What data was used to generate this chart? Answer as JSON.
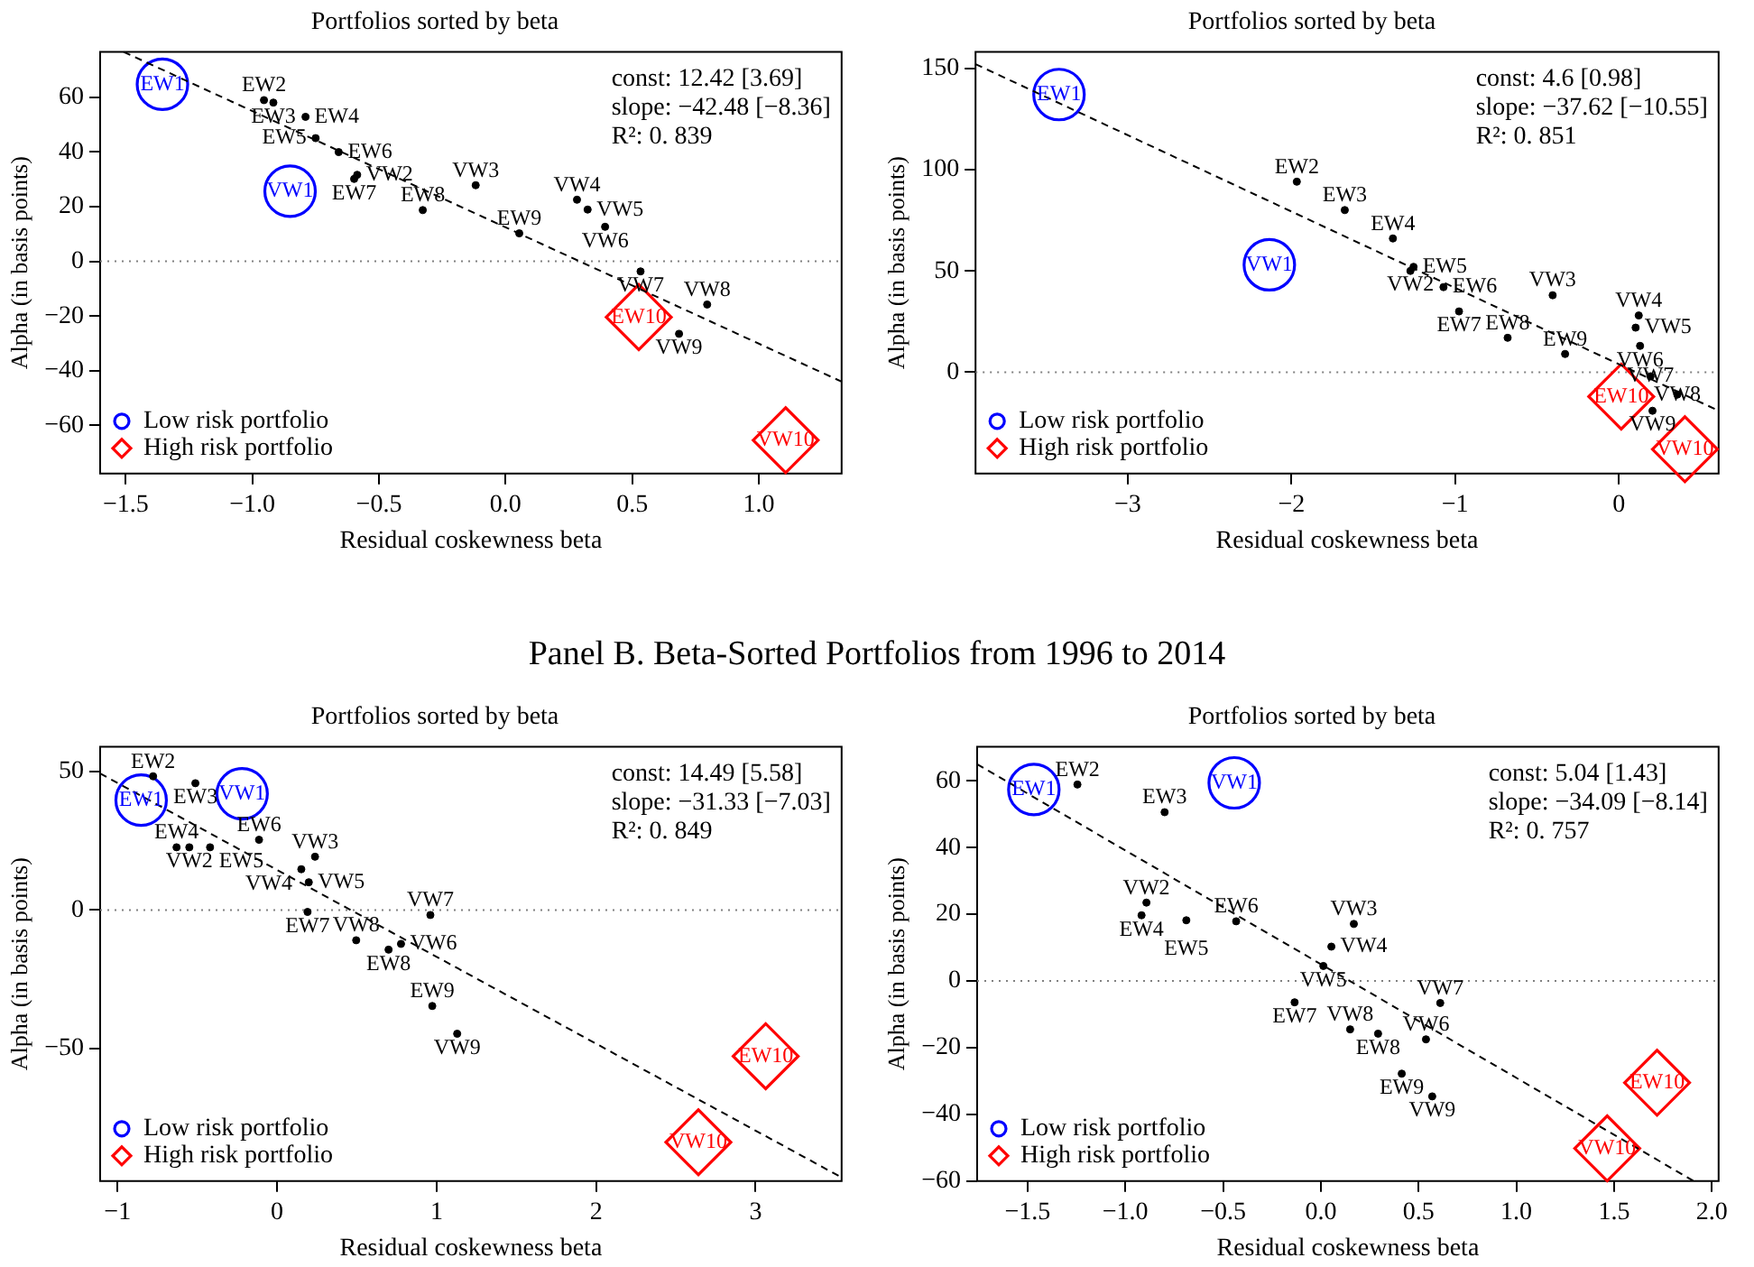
{
  "chart_data": [
    {
      "type": "scatter",
      "title": "Portfolios sorted by beta",
      "xlabel": "Residual coskewness beta",
      "ylabel": "Alpha (in basis points)",
      "xlim": [
        -1.601,
        1.327
      ],
      "ylim": [
        -77.6,
        76.5
      ],
      "xticks": [
        {
          "value": -1.5,
          "label": "−1.5"
        },
        {
          "value": -1,
          "label": "−1.0"
        },
        {
          "value": -0.5,
          "label": "−0.5"
        },
        {
          "value": 0,
          "label": "0.0"
        },
        {
          "value": 0.5,
          "label": "0.5"
        },
        {
          "value": 1,
          "label": "1.0"
        }
      ],
      "yticks": [
        {
          "value": -60,
          "label": "−60"
        },
        {
          "value": -40,
          "label": "−40"
        },
        {
          "value": -20,
          "label": "−20"
        },
        0,
        20,
        40,
        60
      ],
      "legend": "bottom left",
      "series": [
        {
          "name": "Low risk portfolio",
          "color": "#0000ff",
          "marker": "circle",
          "x": [
            -1.355,
            -0.851
          ],
          "values": [
            64.7,
            25.6
          ]
        },
        {
          "name": "High risk portfolio",
          "color": "#ff0000",
          "marker": "diamond",
          "x": [
            0.526,
            1.106
          ],
          "values": [
            -20.4,
            -65.4
          ]
        },
        {
          "color": "#000000",
          "marker": "circle",
          "x": [
            -0.954,
            -0.917,
            -0.79,
            -0.75,
            -0.659,
            -0.586,
            -0.598,
            -0.118,
            -0.327,
            0.054,
            0.282,
            0.324,
            0.393,
            0.533,
            0.796,
            0.685
          ],
          "values": [
            58.9,
            58.0,
            52.8,
            45.0,
            39.9,
            31.6,
            30.1,
            27.8,
            18.7,
            10.2,
            22.5,
            18.9,
            12.6,
            -3.7,
            -15.8,
            -26.5
          ]
        },
        {
          "type": "line",
          "color": "#000000",
          "marker": "none",
          "line_style": "dashed",
          "x": [
            -1.508,
            1.327
          ],
          "values": [
            76.5,
            -44.0
          ]
        }
      ],
      "ref_lines": [
        {
          "axis": "y",
          "value": 0,
          "color": "#808080",
          "line_style": "dotted"
        }
      ],
      "annotations": [
        "const: 12.42 [3.69]",
        "slope: −42.48 [−8.36]",
        "R²: 0. 839",
        {
          "text": "EW1",
          "x": -1.355,
          "y": 64.7
        },
        {
          "text": "VW1",
          "x": -0.851,
          "y": 25.6
        },
        {
          "text": "EW2",
          "x": -0.954,
          "y": 58.9
        },
        {
          "text": "EW3",
          "x": -0.917,
          "y": 58.0
        },
        {
          "text": "EW4",
          "x": -0.79,
          "y": 52.8
        },
        {
          "text": "EW5",
          "x": -0.75,
          "y": 45.0
        },
        {
          "text": "EW6",
          "x": -0.659,
          "y": 39.9
        },
        {
          "text": "VW2",
          "x": -0.586,
          "y": 31.6
        },
        {
          "text": "EW7",
          "x": -0.598,
          "y": 30.1
        },
        {
          "text": "VW3",
          "x": -0.118,
          "y": 27.8
        },
        {
          "text": "EW8",
          "x": -0.327,
          "y": 18.7
        },
        {
          "text": "EW9",
          "x": 0.054,
          "y": 10.2
        },
        {
          "text": "VW4",
          "x": 0.282,
          "y": 22.5
        },
        {
          "text": "VW5",
          "x": 0.324,
          "y": 18.9
        },
        {
          "text": "VW6",
          "x": 0.393,
          "y": 12.6
        },
        {
          "text": "VW7",
          "x": 0.533,
          "y": -3.7
        },
        {
          "text": "VW8",
          "x": 0.796,
          "y": -15.8
        },
        {
          "text": "VW9",
          "x": 0.685,
          "y": -26.5
        },
        {
          "text": "EW10",
          "x": 0.526,
          "y": -20.4
        },
        {
          "text": "VW10",
          "x": 1.106,
          "y": -65.4
        }
      ]
    },
    {
      "type": "scatter",
      "title": "Portfolios sorted by beta",
      "xlabel": "Residual coskewness beta",
      "ylabel": "Alpha (in basis points)",
      "xlim": [
        -3.93,
        0.61
      ],
      "ylim": [
        -50,
        158
      ],
      "xticks": [
        {
          "value": -3,
          "label": "−3"
        },
        {
          "value": -2,
          "label": "−2"
        },
        {
          "value": -1,
          "label": "−1"
        },
        0
      ],
      "yticks": [
        0,
        50,
        100,
        150
      ],
      "legend": "bottom left",
      "series": [
        {
          "name": "Low risk portfolio",
          "color": "#0000ff",
          "marker": "circle",
          "x": [
            -3.42,
            -2.135
          ],
          "values": [
            137,
            53
          ]
        },
        {
          "name": "High risk portfolio",
          "color": "#ff0000",
          "marker": "diamond",
          "x": [
            0.015,
            0.404
          ],
          "values": [
            -12,
            -38
          ]
        },
        {
          "color": "#000000",
          "marker": "circle",
          "x": [
            -1.967,
            -1.674,
            -1.38,
            -1.254,
            -1.273,
            -1.071,
            -0.976,
            -0.404,
            -0.679,
            -0.328,
            0.122,
            0.103,
            0.13,
            0.194,
            0.358,
            0.206
          ],
          "values": [
            94,
            80,
            66,
            52,
            50,
            42,
            30,
            38,
            17,
            9,
            28,
            22,
            13,
            -2,
            -11,
            -19
          ]
        },
        {
          "type": "line",
          "color": "#000000",
          "marker": "none",
          "line_style": "dashed",
          "x": [
            -3.93,
            0.61
          ],
          "values": [
            152,
            -19
          ]
        }
      ],
      "ref_lines": [
        {
          "axis": "y",
          "value": 0,
          "color": "#808080",
          "line_style": "dotted"
        }
      ],
      "annotations": [
        "const: 4.6 [0.98]",
        "slope: −37.62 [−10.55]",
        "R²: 0. 851",
        {
          "text": "EW1",
          "x": -3.42,
          "y": 137
        },
        {
          "text": "VW1",
          "x": -2.135,
          "y": 53
        },
        {
          "text": "EW2",
          "x": -1.967,
          "y": 94
        },
        {
          "text": "EW3",
          "x": -1.674,
          "y": 80
        },
        {
          "text": "EW4",
          "x": -1.38,
          "y": 66
        },
        {
          "text": "EW5",
          "x": -1.254,
          "y": 52
        },
        {
          "text": "VW2",
          "x": -1.273,
          "y": 50
        },
        {
          "text": "EW6",
          "x": -1.071,
          "y": 42
        },
        {
          "text": "EW7",
          "x": -0.976,
          "y": 30
        },
        {
          "text": "VW3",
          "x": -0.404,
          "y": 38
        },
        {
          "text": "EW8",
          "x": -0.679,
          "y": 17
        },
        {
          "text": "EW9",
          "x": -0.328,
          "y": 9
        },
        {
          "text": "VW4",
          "x": 0.122,
          "y": 28
        },
        {
          "text": "VW5",
          "x": 0.103,
          "y": 22
        },
        {
          "text": "VW6",
          "x": 0.13,
          "y": 13
        },
        {
          "text": "VW7",
          "x": 0.194,
          "y": -2
        },
        {
          "text": "VW8",
          "x": 0.358,
          "y": -11
        },
        {
          "text": "VW9",
          "x": 0.206,
          "y": -19
        },
        {
          "text": "EW10",
          "x": 0.015,
          "y": -12
        },
        {
          "text": "VW10",
          "x": 0.404,
          "y": -38
        }
      ]
    },
    {
      "type": "scatter",
      "title": "Portfolios sorted by beta",
      "subtitle": "Panel B. Beta-Sorted Portfolios from 1996 to 2014",
      "xlabel": "Residual coskewness beta",
      "ylabel": "Alpha (in basis points)",
      "xlim": [
        -1.109,
        3.539
      ],
      "ylim": [
        -97.7,
        58.8
      ],
      "xticks": [
        {
          "value": -1,
          "label": "−1"
        },
        0,
        1,
        2,
        3
      ],
      "yticks": [
        {
          "value": -50,
          "label": "−50"
        },
        0,
        50
      ],
      "legend": "bottom left",
      "series": [
        {
          "name": "Low risk portfolio",
          "color": "#0000ff",
          "marker": "circle",
          "x": [
            -0.852,
            -0.219
          ],
          "values": [
            39.6,
            41.9
          ]
        },
        {
          "name": "High risk portfolio",
          "color": "#ff0000",
          "marker": "diamond",
          "x": [
            3.063,
            2.641
          ],
          "values": [
            -52.7,
            -83.7
          ]
        },
        {
          "color": "#000000",
          "marker": "circle",
          "x": [
            -0.777,
            -0.512,
            -0.63,
            -0.55,
            -0.42,
            -0.113,
            0.238,
            0.152,
            0.199,
            0.191,
            0.961,
            0.496,
            0.777,
            0.699,
            0.973,
            1.129
          ],
          "values": [
            48.2,
            45.7,
            22.6,
            22.6,
            22.6,
            25.3,
            19.2,
            14.7,
            10.0,
            -0.7,
            -1.8,
            -10.9,
            -12.2,
            -14.3,
            -34.6,
            -44.6
          ]
        },
        {
          "type": "line",
          "color": "#000000",
          "marker": "none",
          "line_style": "dashed",
          "x": [
            -1.109,
            3.539
          ],
          "values": [
            49.2,
            -96.4
          ]
        }
      ],
      "ref_lines": [
        {
          "axis": "y",
          "value": 0,
          "color": "#808080",
          "line_style": "dotted"
        }
      ],
      "annotations": [
        "const: 14.49 [5.58]",
        "slope: −31.33 [−7.03]",
        "R²: 0. 849",
        {
          "text": "EW1",
          "x": -0.852,
          "y": 39.6
        },
        {
          "text": "VW1",
          "x": -0.219,
          "y": 41.9
        },
        {
          "text": "EW2",
          "x": -0.777,
          "y": 48.2
        },
        {
          "text": "EW3",
          "x": -0.512,
          "y": 45.7
        },
        {
          "text": "EW4",
          "x": -0.63,
          "y": 22.6
        },
        {
          "text": "VW2",
          "x": -0.55,
          "y": 22.6
        },
        {
          "text": "EW5",
          "x": -0.42,
          "y": 22.6
        },
        {
          "text": "EW6",
          "x": -0.113,
          "y": 25.3
        },
        {
          "text": "VW3",
          "x": 0.238,
          "y": 19.2
        },
        {
          "text": "VW4",
          "x": 0.152,
          "y": 14.7
        },
        {
          "text": "VW5",
          "x": 0.199,
          "y": 10.0
        },
        {
          "text": "EW7",
          "x": 0.191,
          "y": -0.7
        },
        {
          "text": "VW7",
          "x": 0.961,
          "y": -1.8
        },
        {
          "text": "VW8",
          "x": 0.496,
          "y": -10.9
        },
        {
          "text": "VW6",
          "x": 0.777,
          "y": -12.2
        },
        {
          "text": "EW8",
          "x": 0.699,
          "y": -14.3
        },
        {
          "text": "EW9",
          "x": 0.973,
          "y": -34.6
        },
        {
          "text": "VW9",
          "x": 1.129,
          "y": -44.6
        },
        {
          "text": "EW10",
          "x": 3.063,
          "y": -52.7
        },
        {
          "text": "VW10",
          "x": 2.641,
          "y": -83.7
        }
      ]
    },
    {
      "type": "scatter",
      "title": "Portfolios sorted by beta",
      "xlabel": "Residual coskewness beta",
      "ylabel": "Alpha (in basis points)",
      "xlim": [
        -1.758,
        2.035
      ],
      "ylim": [
        -60,
        70.2
      ],
      "xticks": [
        {
          "value": -1.5,
          "label": "−1.5"
        },
        {
          "value": -1,
          "label": "−1.0"
        },
        {
          "value": -0.5,
          "label": "−0.5"
        },
        {
          "value": 0,
          "label": "0.0"
        },
        {
          "value": 0.5,
          "label": "0.5"
        },
        {
          "value": 1,
          "label": "1.0"
        },
        {
          "value": 1.5,
          "label": "1.5"
        },
        {
          "value": 2,
          "label": "2.0"
        }
      ],
      "yticks": [
        {
          "value": -60,
          "label": "−60"
        },
        {
          "value": -40,
          "label": "−40"
        },
        {
          "value": -20,
          "label": "−20"
        },
        0,
        20,
        40,
        60
      ],
      "legend": "bottom left",
      "series": [
        {
          "name": "Low risk portfolio",
          "color": "#0000ff",
          "marker": "circle",
          "x": [
            -1.468,
            -0.443
          ],
          "values": [
            57.4,
            59.4
          ]
        },
        {
          "name": "High risk portfolio",
          "color": "#ff0000",
          "marker": "diamond",
          "x": [
            1.72,
            1.465
          ],
          "values": [
            -30.5,
            -50.2
          ]
        },
        {
          "color": "#000000",
          "marker": "circle",
          "x": [
            -1.245,
            -0.799,
            -0.892,
            -0.917,
            -0.688,
            -0.433,
            0.169,
            0.054,
            0.013,
            -0.134,
            0.611,
            0.15,
            0.293,
            0.538,
            0.414,
            0.57
          ],
          "values": [
            58.9,
            50.6,
            23.5,
            19.7,
            18.2,
            17.9,
            17.1,
            10.3,
            4.5,
            -6.4,
            -6.6,
            -14.5,
            -15.8,
            -17.5,
            -27.8,
            -34.6
          ]
        },
        {
          "type": "line",
          "color": "#000000",
          "marker": "none",
          "line_style": "dashed",
          "x": [
            -1.758,
            1.908
          ],
          "values": [
            65.0,
            -60
          ]
        }
      ],
      "ref_lines": [
        {
          "axis": "y",
          "value": 0,
          "color": "#808080",
          "line_style": "dotted"
        }
      ],
      "annotations": [
        "const: 5.04 [1.43]",
        "slope: −34.09 [−8.14]",
        "R²: 0. 757",
        {
          "text": "EW1",
          "x": -1.468,
          "y": 57.4
        },
        {
          "text": "VW1",
          "x": -0.443,
          "y": 59.4
        },
        {
          "text": "EW2",
          "x": -1.245,
          "y": 58.9
        },
        {
          "text": "EW3",
          "x": -0.799,
          "y": 50.6
        },
        {
          "text": "VW2",
          "x": -0.892,
          "y": 23.5
        },
        {
          "text": "EW4",
          "x": -0.917,
          "y": 19.7
        },
        {
          "text": "EW5",
          "x": -0.688,
          "y": 18.2
        },
        {
          "text": "EW6",
          "x": -0.433,
          "y": 17.9
        },
        {
          "text": "VW3",
          "x": 0.169,
          "y": 17.1
        },
        {
          "text": "VW4",
          "x": 0.054,
          "y": 10.3
        },
        {
          "text": "VW5",
          "x": 0.013,
          "y": 4.5
        },
        {
          "text": "EW7",
          "x": -0.134,
          "y": -6.4
        },
        {
          "text": "VW7",
          "x": 0.611,
          "y": -6.6
        },
        {
          "text": "VW8",
          "x": 0.15,
          "y": -14.5
        },
        {
          "text": "EW8",
          "x": 0.293,
          "y": -15.8
        },
        {
          "text": "VW6",
          "x": 0.538,
          "y": -17.5
        },
        {
          "text": "EW9",
          "x": 0.414,
          "y": -27.8
        },
        {
          "text": "VW9",
          "x": 0.57,
          "y": -34.6
        },
        {
          "text": "EW10",
          "x": 1.72,
          "y": -30.5
        },
        {
          "text": "VW10",
          "x": 1.465,
          "y": -50.2
        }
      ]
    }
  ]
}
